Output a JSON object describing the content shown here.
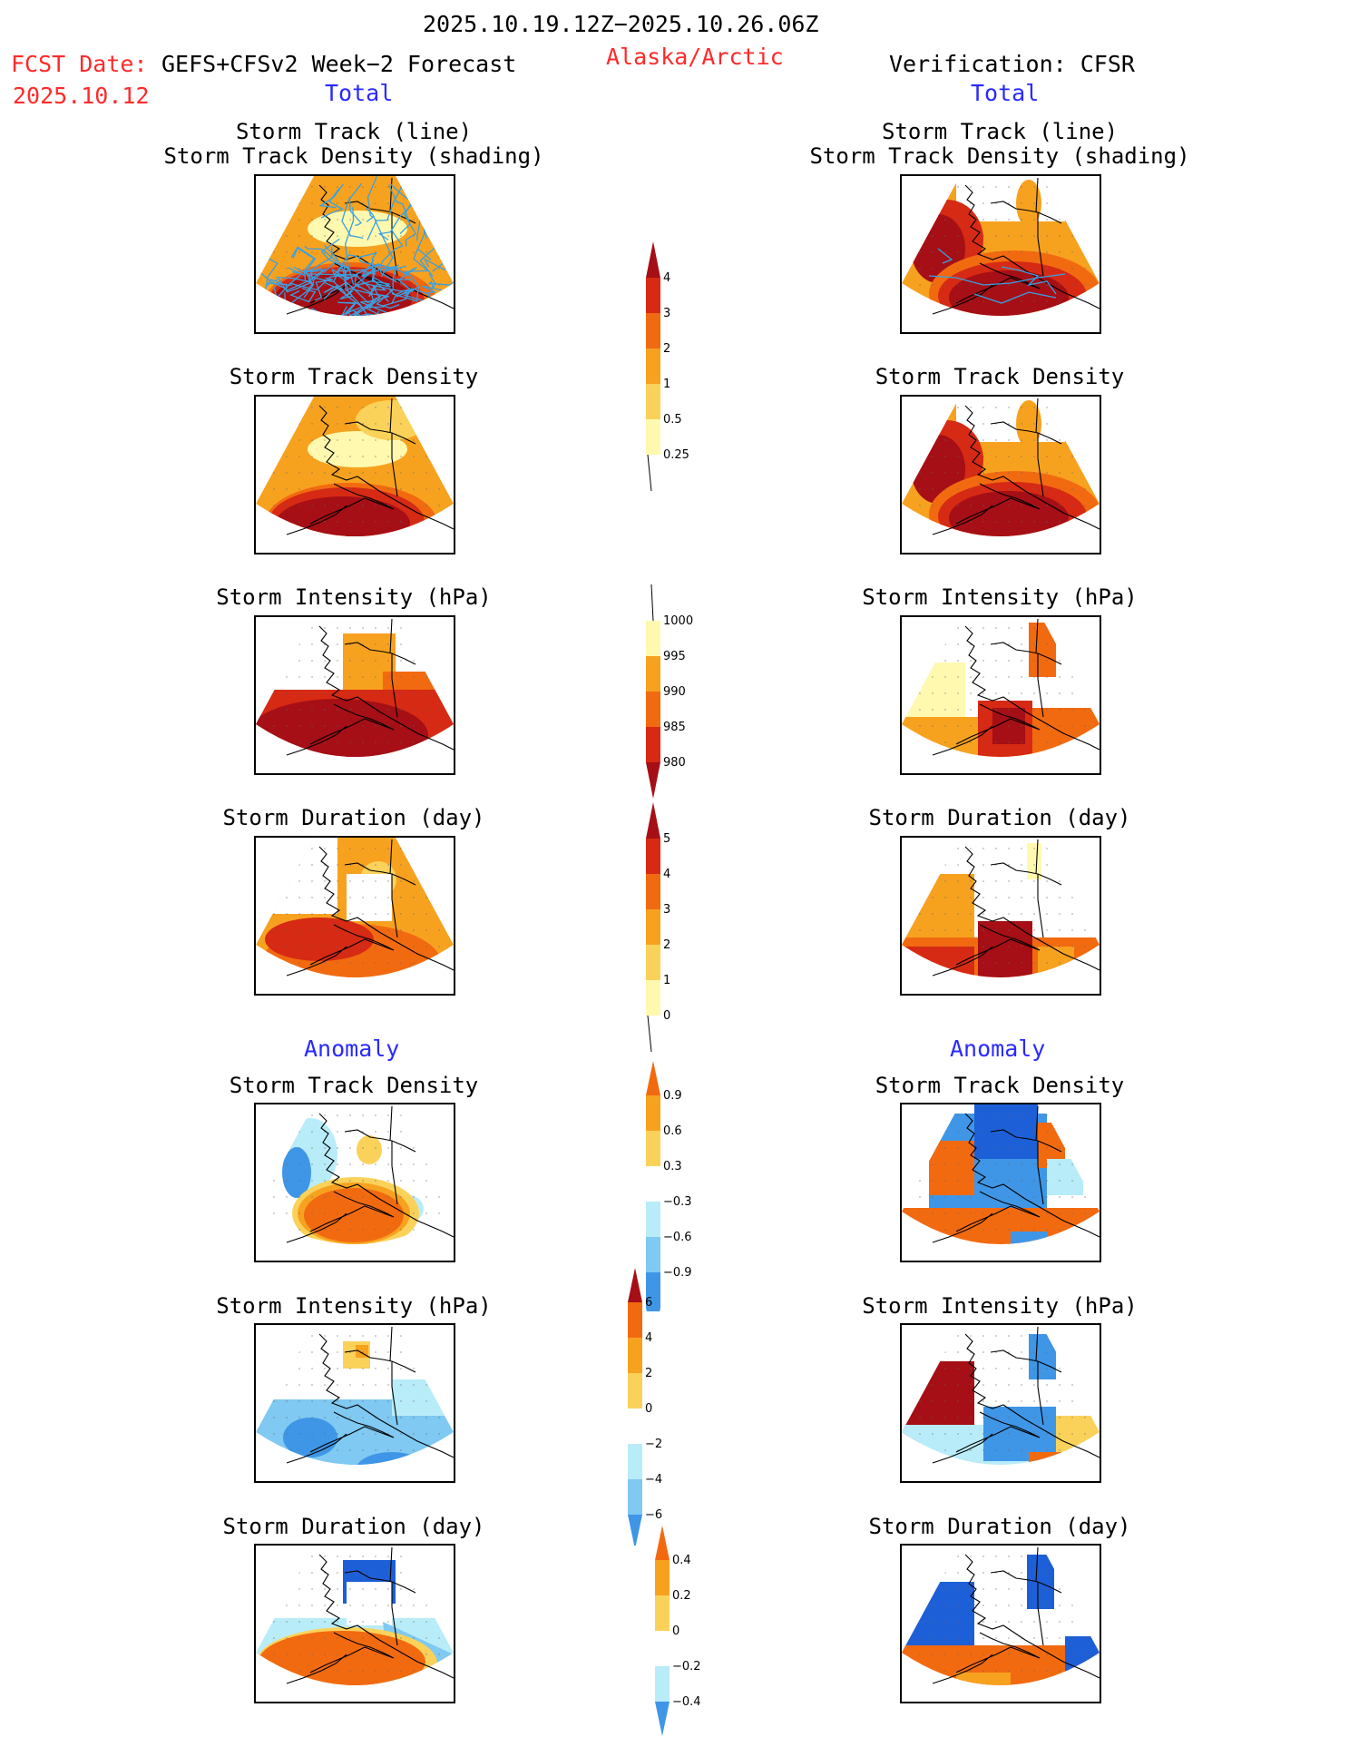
{
  "header": {
    "period": "2025.10.19.12Z−2025.10.26.06Z",
    "fcst_label": "FCST Date:",
    "fcst_model": "GEFS+CFSv2 Week−2 Forecast",
    "fcst_date": "2025.10.12",
    "region": "Alaska/Arctic",
    "verification": "Verification: CFSR",
    "left_total": "Total",
    "right_total": "Total",
    "left_anomaly": "Anomaly",
    "right_anomaly": "Anomaly"
  },
  "panel_titles": {
    "track_line": "Storm Track (line)",
    "track_shading": "Storm Track Density (shading)",
    "density": "Storm Track Density",
    "intensity": "Storm Intensity (hPa)",
    "duration": "Storm Duration (day)"
  },
  "colors": {
    "c1": "#fff9b0",
    "c2": "#fad25a",
    "c3": "#f7a21f",
    "c4": "#f26a10",
    "c5": "#d62a14",
    "c6": "#a50f15",
    "b1": "#b9ecf9",
    "b2": "#7fc9f2",
    "b3": "#3f96e6",
    "b4": "#1d5fd6",
    "track_line": "#3aa0e0"
  },
  "chart_data": [
    {
      "type": "heatmap",
      "id": "colorbar-density",
      "title": "Storm Track Density",
      "levels": [
        0.25,
        0.5,
        1,
        2,
        3,
        4
      ],
      "tick_labels": [
        "0.25",
        "0.5",
        "1",
        "2",
        "3",
        "4"
      ]
    },
    {
      "type": "heatmap",
      "id": "colorbar-intensity",
      "title": "Storm Intensity (hPa)",
      "levels": [
        1000,
        995,
        990,
        985,
        980
      ],
      "tick_labels": [
        "1000",
        "995",
        "990",
        "985",
        "980"
      ]
    },
    {
      "type": "heatmap",
      "id": "colorbar-duration",
      "title": "Storm Duration (day)",
      "levels": [
        0,
        1,
        2,
        3,
        4,
        5
      ],
      "tick_labels": [
        "0",
        "1",
        "2",
        "3",
        "4",
        "5"
      ]
    },
    {
      "type": "heatmap",
      "id": "colorbar-density-anom",
      "title": "Storm Track Density Anomaly",
      "levels": [
        -0.9,
        -0.6,
        -0.3,
        0.3,
        0.6,
        0.9
      ],
      "tick_labels": [
        "0.9",
        "0.6",
        "0.3",
        "−0.3",
        "−0.6",
        "−0.9"
      ]
    },
    {
      "type": "heatmap",
      "id": "colorbar-intensity-anom",
      "title": "Storm Intensity Anomaly (hPa)",
      "levels": [
        -6,
        -4,
        -2,
        0,
        2,
        4,
        6
      ],
      "tick_labels": [
        "6",
        "4",
        "2",
        "0",
        "−2",
        "−4",
        "−6"
      ]
    },
    {
      "type": "heatmap",
      "id": "colorbar-duration-anom",
      "title": "Storm Duration Anomaly (day)",
      "levels": [
        -0.4,
        -0.2,
        0,
        0.2,
        0.4
      ],
      "tick_labels": [
        "0.4",
        "0.2",
        "0",
        "−0.2",
        "−0.4"
      ]
    }
  ]
}
